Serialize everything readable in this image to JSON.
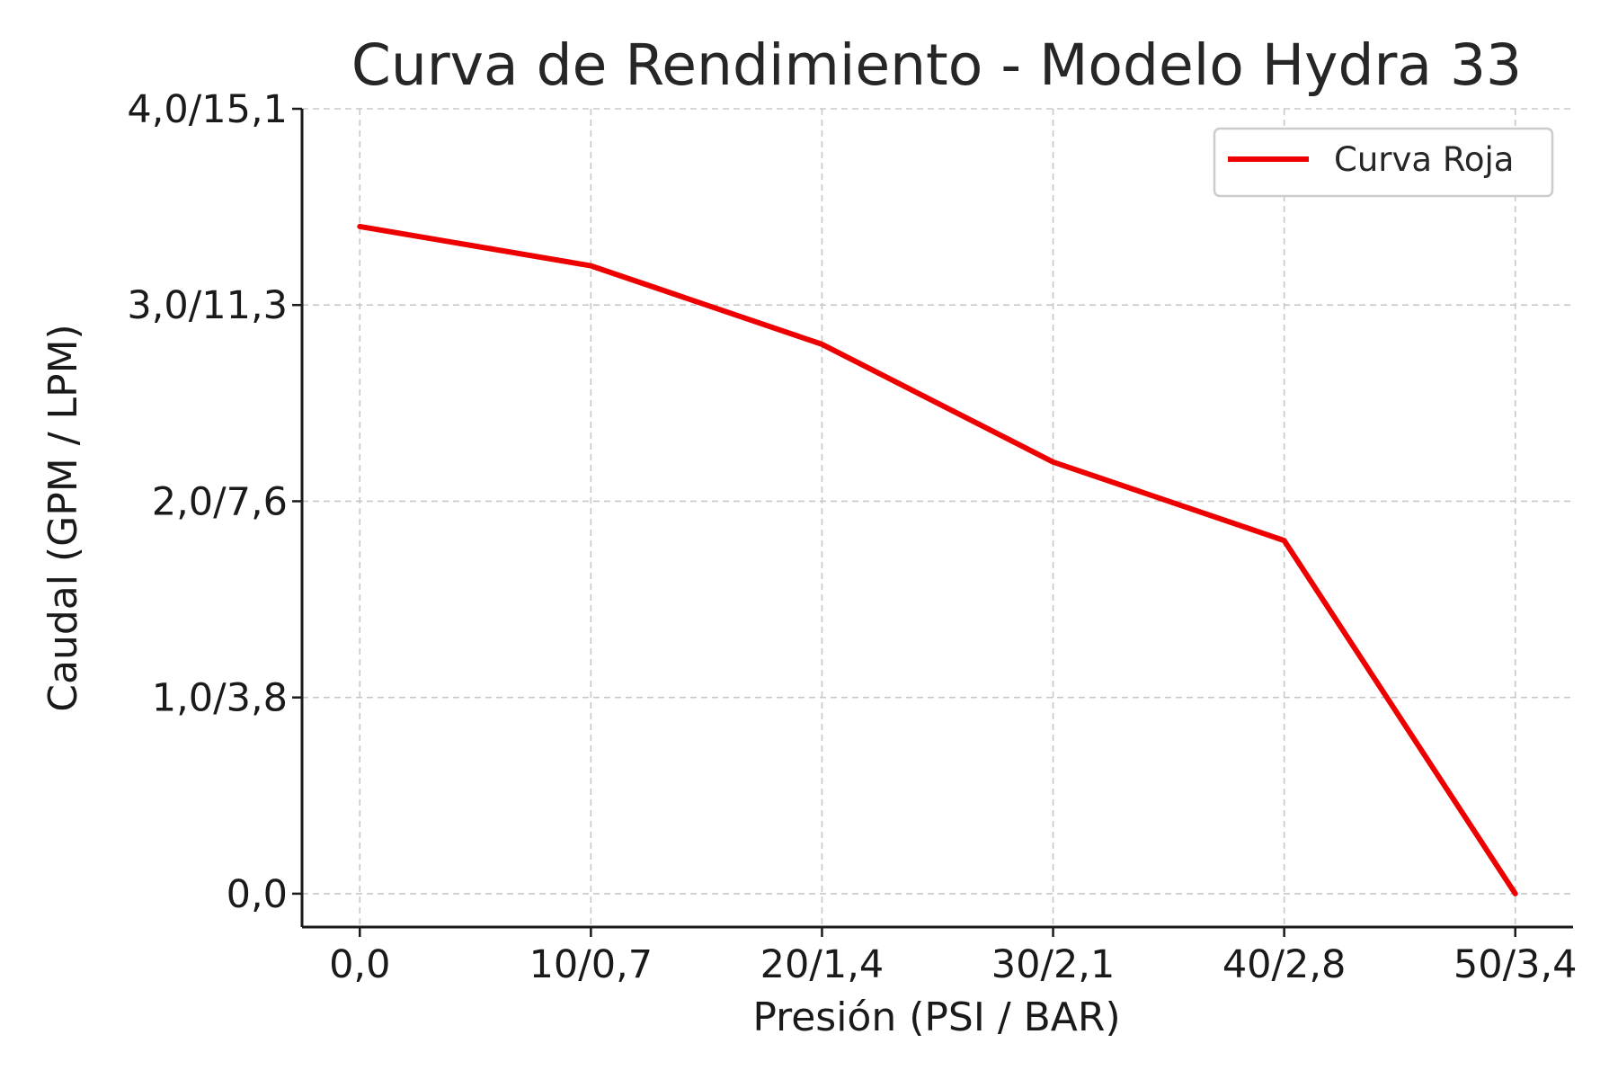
{
  "chart_data": {
    "type": "line",
    "title": "Curva de Rendimiento - Modelo Hydra 33",
    "xlabel": "Presión (PSI / BAR)",
    "ylabel": "Caudal (GPM / LPM)",
    "x": [
      0,
      10,
      20,
      30,
      40,
      50
    ],
    "x_tick_labels": [
      "0,0",
      "10/0,7",
      "20/1,4",
      "30/2,1",
      "40/2,8",
      "50/3,4"
    ],
    "y_ticks": [
      0,
      1,
      2,
      3,
      4
    ],
    "y_tick_labels": [
      "0,0",
      "1,0/3,8",
      "2,0/7,6",
      "3,0/11,3",
      "4,0/15,1"
    ],
    "xlim": [
      -2.5,
      52.5
    ],
    "ylim": [
      -0.17,
      4.0
    ],
    "grid": true,
    "legend_position": "top-right",
    "series": [
      {
        "name": "Curva Roja",
        "color": "#ee0000",
        "values": [
          3.4,
          3.2,
          2.8,
          2.2,
          1.8,
          0.0
        ]
      }
    ]
  }
}
